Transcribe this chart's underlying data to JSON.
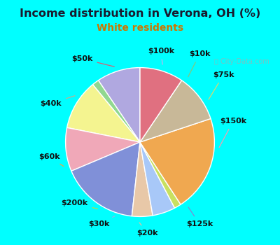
{
  "title": "Income distribution in Verona, OH (%)",
  "subtitle": "White residents",
  "title_color": "#1a1a2e",
  "subtitle_color": "#cc7700",
  "background_outer": "#00FFFF",
  "background_inner_color": "#e8f5ee",
  "labels": [
    "$100k",
    "$10k",
    "$75k",
    "$150k",
    "$125k",
    "$20k",
    "$30k",
    "$200k",
    "$60k",
    "$40k",
    "$50k"
  ],
  "sizes": [
    9.5,
    1.5,
    11.0,
    9.5,
    17.0,
    4.5,
    5.0,
    1.5,
    21.0,
    10.5,
    9.5
  ],
  "colors": [
    "#b0a8e0",
    "#90d890",
    "#f4f490",
    "#f0a8b8",
    "#8090d8",
    "#e8c8a8",
    "#a8c8f8",
    "#c8e060",
    "#f0a850",
    "#c8b898",
    "#e07080"
  ],
  "label_fontsize": 8,
  "line_colors": [
    "#c0b0f0",
    "#80c880",
    "#d8d870",
    "#f0a0b0",
    "#8088d0",
    "#e0c0a0",
    "#90b8e8",
    "#b8d850",
    "#e8a848",
    "#c0b090",
    "#d86070"
  ],
  "watermark": "City-Data.com"
}
